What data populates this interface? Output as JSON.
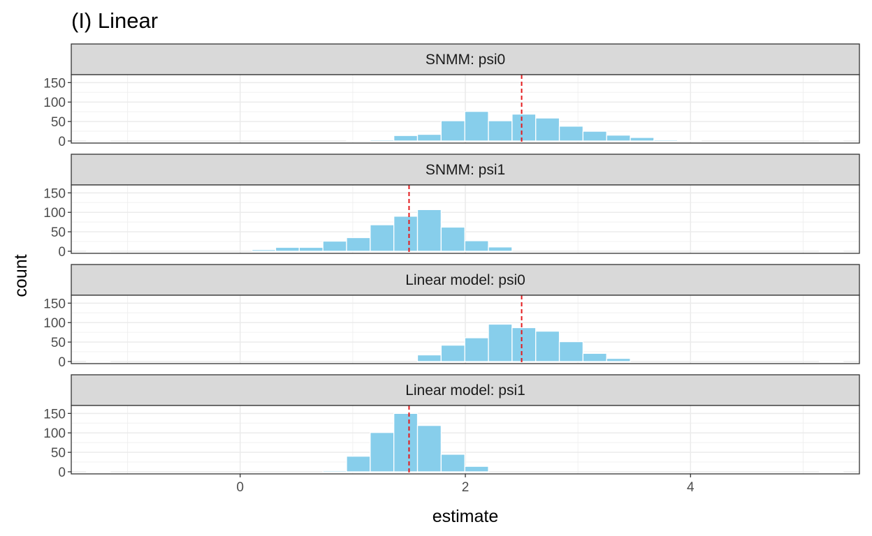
{
  "chart_data": {
    "type": "bar",
    "title": "(I) Linear",
    "xlabel": "estimate",
    "ylabel": "count",
    "xlim": [
      -1.5,
      5.5
    ],
    "ylim": [
      0,
      165
    ],
    "x_ticks": [
      0,
      2,
      4
    ],
    "y_ticks": [
      0,
      50,
      100,
      150
    ],
    "grid": true,
    "bin_width": 0.21,
    "bar_color": "#87CEEB",
    "reference_line_color": "#E41A1C",
    "panels": [
      {
        "label": "SNMM: psi0",
        "reference_line": 2.5,
        "bins": [
          {
            "x": -1.26,
            "count": 0
          },
          {
            "x": 1.05,
            "count": 1
          },
          {
            "x": 1.26,
            "count": 3
          },
          {
            "x": 1.47,
            "count": 14
          },
          {
            "x": 1.68,
            "count": 17
          },
          {
            "x": 1.89,
            "count": 52
          },
          {
            "x": 2.1,
            "count": 76
          },
          {
            "x": 2.31,
            "count": 52
          },
          {
            "x": 2.52,
            "count": 69
          },
          {
            "x": 2.73,
            "count": 59
          },
          {
            "x": 2.94,
            "count": 38
          },
          {
            "x": 3.15,
            "count": 25
          },
          {
            "x": 3.36,
            "count": 15
          },
          {
            "x": 3.57,
            "count": 9
          },
          {
            "x": 3.78,
            "count": 3
          },
          {
            "x": 3.99,
            "count": 1
          },
          {
            "x": 5.25,
            "count": 0
          }
        ]
      },
      {
        "label": "SNMM: psi1",
        "reference_line": 1.5,
        "bins": [
          {
            "x": -1.26,
            "count": 0
          },
          {
            "x": 0.21,
            "count": 4
          },
          {
            "x": 0.42,
            "count": 10
          },
          {
            "x": 0.63,
            "count": 10
          },
          {
            "x": 0.84,
            "count": 26
          },
          {
            "x": 1.05,
            "count": 35
          },
          {
            "x": 1.26,
            "count": 68
          },
          {
            "x": 1.47,
            "count": 90
          },
          {
            "x": 1.68,
            "count": 107
          },
          {
            "x": 1.89,
            "count": 62
          },
          {
            "x": 2.1,
            "count": 27
          },
          {
            "x": 2.31,
            "count": 11
          },
          {
            "x": 5.25,
            "count": 0
          }
        ]
      },
      {
        "label": "Linear model: psi0",
        "reference_line": 2.5,
        "bins": [
          {
            "x": -1.26,
            "count": 0
          },
          {
            "x": 1.68,
            "count": 17
          },
          {
            "x": 1.89,
            "count": 42
          },
          {
            "x": 2.1,
            "count": 61
          },
          {
            "x": 2.31,
            "count": 96
          },
          {
            "x": 2.52,
            "count": 87
          },
          {
            "x": 2.73,
            "count": 78
          },
          {
            "x": 2.94,
            "count": 51
          },
          {
            "x": 3.15,
            "count": 21
          },
          {
            "x": 3.36,
            "count": 8
          },
          {
            "x": 5.25,
            "count": 0
          }
        ]
      },
      {
        "label": "Linear model: psi1",
        "reference_line": 1.5,
        "bins": [
          {
            "x": -1.26,
            "count": 0
          },
          {
            "x": 0.84,
            "count": 3
          },
          {
            "x": 1.05,
            "count": 40
          },
          {
            "x": 1.26,
            "count": 101
          },
          {
            "x": 1.47,
            "count": 150
          },
          {
            "x": 1.68,
            "count": 119
          },
          {
            "x": 1.89,
            "count": 45
          },
          {
            "x": 2.1,
            "count": 14
          },
          {
            "x": 5.25,
            "count": 0
          }
        ]
      }
    ]
  }
}
